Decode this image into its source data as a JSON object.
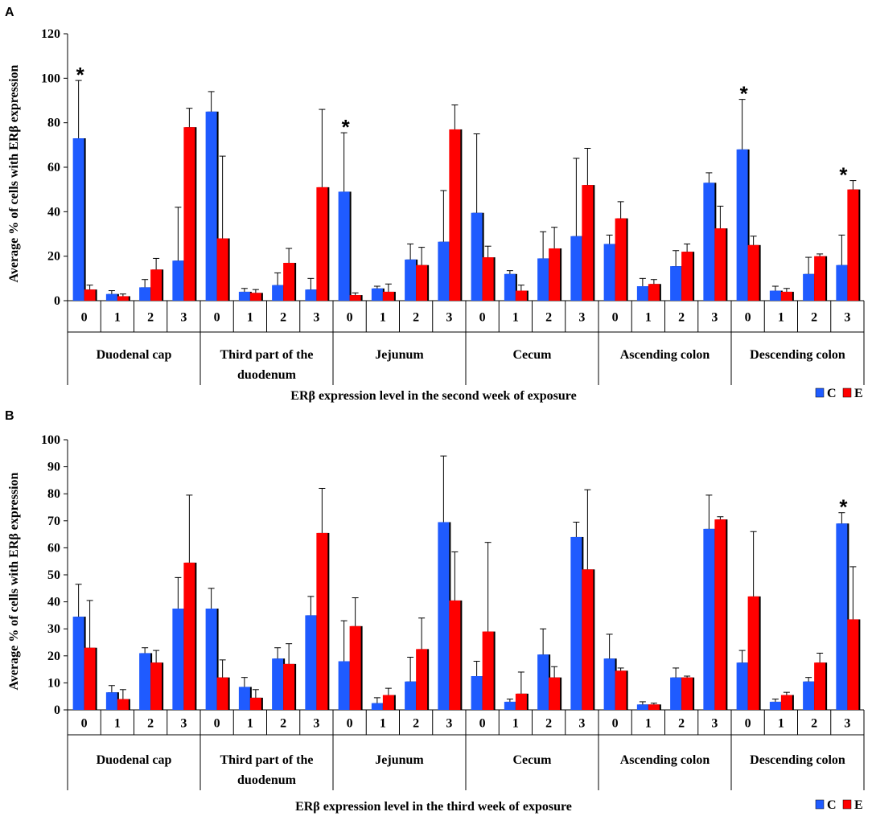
{
  "chart_data": [
    {
      "type": "bar",
      "panel": "A",
      "xlabel": "ERβ expression level in the second week of exposure",
      "ylabel": "Average % of cells with ERβ expression",
      "ylim": [
        0,
        120
      ],
      "yticks": [
        "0",
        "20",
        "40",
        "60",
        "80",
        "100",
        "120"
      ],
      "yvalues": [
        0,
        20,
        40,
        60,
        80,
        100,
        120
      ],
      "levels": [
        "0",
        "1",
        "2",
        "3"
      ],
      "groups": [
        {
          "label_lines": [
            "Duodenal cap"
          ],
          "C": [
            73,
            3,
            6,
            18
          ],
          "E": [
            5,
            2,
            14,
            78
          ],
          "C_err": [
            26,
            1.5,
            3.5,
            24
          ],
          "E_err": [
            2,
            1,
            5,
            8.5
          ],
          "sig": [
            true,
            false,
            false,
            false
          ]
        },
        {
          "label_lines": [
            "Third part of the",
            "duodenum"
          ],
          "C": [
            85,
            4,
            7,
            5
          ],
          "E": [
            28,
            3.5,
            17,
            51
          ],
          "C_err": [
            9,
            1.5,
            5.5,
            5
          ],
          "E_err": [
            37,
            1.5,
            6.5,
            35
          ],
          "sig": [
            false,
            false,
            false,
            false
          ]
        },
        {
          "label_lines": [
            "Jejunum"
          ],
          "C": [
            49,
            5.5,
            18.5,
            26.5
          ],
          "E": [
            2.5,
            4,
            16,
            77
          ],
          "C_err": [
            26.5,
            1,
            7,
            23
          ],
          "E_err": [
            1,
            3.5,
            8,
            11
          ],
          "sig": [
            true,
            false,
            false,
            false
          ]
        },
        {
          "label_lines": [
            "Cecum"
          ],
          "C": [
            39.5,
            12,
            19,
            29
          ],
          "E": [
            19.5,
            4.5,
            23.5,
            52
          ],
          "C_err": [
            35.5,
            1.5,
            12,
            35
          ],
          "E_err": [
            5,
            2.5,
            9.5,
            16.5
          ],
          "sig": [
            false,
            false,
            false,
            false
          ]
        },
        {
          "label_lines": [
            "Ascending colon"
          ],
          "C": [
            25.5,
            6.5,
            15.5,
            53
          ],
          "E": [
            37,
            7.5,
            22,
            32.5
          ],
          "C_err": [
            4,
            3.5,
            7,
            4.5
          ],
          "E_err": [
            7.5,
            2,
            3.5,
            10
          ],
          "sig": [
            false,
            false,
            false,
            false
          ]
        },
        {
          "label_lines": [
            "Descending colon"
          ],
          "C": [
            68,
            4.5,
            12,
            16
          ],
          "E": [
            25,
            4,
            20,
            50
          ],
          "C_err": [
            22.5,
            2,
            7.5,
            13.5
          ],
          "E_err": [
            4,
            1.5,
            1,
            4
          ],
          "sig": [
            true,
            false,
            false,
            true
          ]
        }
      ],
      "legend": [
        "C",
        "E"
      ],
      "significance_mark": "*",
      "colors": {
        "C": "#1f5bff",
        "E": "#ff0000"
      }
    },
    {
      "type": "bar",
      "panel": "B",
      "xlabel": "ERβ expression level in the third week of exposure",
      "ylabel": "Average % of cells with ERβ expression",
      "ylim": [
        0,
        100
      ],
      "yticks": [
        "0",
        "10",
        "20",
        "30",
        "40",
        "50",
        "60",
        "70",
        "80",
        "90",
        "100"
      ],
      "yvalues": [
        0,
        10,
        20,
        30,
        40,
        50,
        60,
        70,
        80,
        90,
        100
      ],
      "levels": [
        "0",
        "1",
        "2",
        "3"
      ],
      "groups": [
        {
          "label_lines": [
            "Duodenal cap"
          ],
          "C": [
            34.5,
            6.5,
            21,
            37.5
          ],
          "E": [
            23,
            4,
            17.5,
            54.5
          ],
          "C_err": [
            12,
            2.5,
            2,
            11.5
          ],
          "E_err": [
            17.5,
            3.5,
            4.5,
            25
          ],
          "sig": [
            false,
            false,
            false,
            false
          ]
        },
        {
          "label_lines": [
            "Third part of the",
            "duodenum"
          ],
          "C": [
            37.5,
            8.5,
            19,
            35
          ],
          "E": [
            12,
            4.5,
            17,
            65.5
          ],
          "C_err": [
            7.5,
            3.5,
            4,
            7
          ],
          "E_err": [
            6.5,
            3,
            7.5,
            16.5
          ],
          "sig": [
            false,
            false,
            false,
            false
          ]
        },
        {
          "label_lines": [
            "Jejunum"
          ],
          "C": [
            18,
            2.5,
            10.5,
            69.5
          ],
          "E": [
            31,
            5.5,
            22.5,
            40.5
          ],
          "C_err": [
            15,
            2,
            9,
            24.5
          ],
          "E_err": [
            10.5,
            2.5,
            11.5,
            18
          ],
          "sig": [
            false,
            false,
            false,
            false
          ]
        },
        {
          "label_lines": [
            "Cecum"
          ],
          "C": [
            12.5,
            3,
            20.5,
            64
          ],
          "E": [
            29,
            6,
            12,
            52
          ],
          "C_err": [
            5.5,
            1,
            9.5,
            5.5
          ],
          "E_err": [
            33,
            8,
            4,
            29.5
          ],
          "sig": [
            false,
            false,
            false,
            false
          ]
        },
        {
          "label_lines": [
            "Ascending colon"
          ],
          "C": [
            19,
            2,
            12,
            67
          ],
          "E": [
            14.5,
            2,
            12,
            70.5
          ],
          "C_err": [
            9,
            1,
            3.5,
            12.5
          ],
          "E_err": [
            1,
            0.5,
            0.5,
            1
          ],
          "sig": [
            false,
            false,
            false,
            false
          ]
        },
        {
          "label_lines": [
            "Descending colon"
          ],
          "C": [
            17.5,
            3,
            10.5,
            69
          ],
          "E": [
            42,
            5.5,
            17.5,
            33.5
          ],
          "C_err": [
            4.5,
            1,
            1.5,
            4
          ],
          "E_err": [
            24,
            1,
            3.5,
            19.5
          ],
          "sig": [
            false,
            false,
            false,
            true
          ]
        }
      ],
      "legend": [
        "C",
        "E"
      ],
      "significance_mark": "*",
      "colors": {
        "C": "#1f5bff",
        "E": "#ff0000"
      }
    }
  ]
}
